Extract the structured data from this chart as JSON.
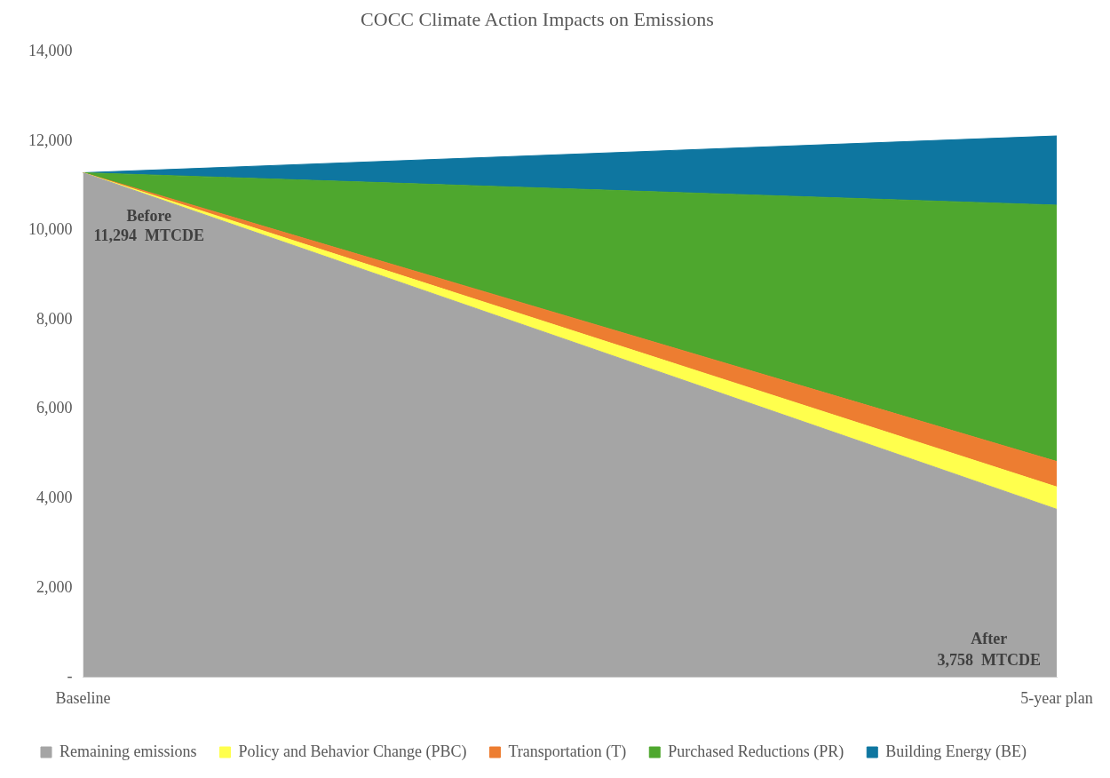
{
  "chart_data": {
    "type": "area",
    "title": "COCC Climate Action Impacts on Emissions",
    "categories": [
      "Baseline",
      "5-year plan"
    ],
    "stacked": true,
    "series": [
      {
        "name": "Remaining emissions",
        "color": "#a5a5a5",
        "values": [
          11294,
          3758
        ]
      },
      {
        "name": "Policy and Behavior Change (PBC)",
        "color": "#ffff4d",
        "values": [
          0,
          500
        ]
      },
      {
        "name": "Transportation (T)",
        "color": "#ed7d31",
        "values": [
          0,
          570
        ]
      },
      {
        "name": "Purchased Reductions (PR)",
        "color": "#4ea72e",
        "values": [
          0,
          5740
        ]
      },
      {
        "name": "Building Energy (BE)",
        "color": "#0e76a0",
        "values": [
          0,
          1550
        ]
      }
    ],
    "ylim": [
      0,
      14000
    ],
    "yticks": [
      {
        "value": 0,
        "label": "-"
      },
      {
        "value": 2000,
        "label": "2,000"
      },
      {
        "value": 4000,
        "label": "4,000"
      },
      {
        "value": 6000,
        "label": "6,000"
      },
      {
        "value": 8000,
        "label": "8,000"
      },
      {
        "value": 10000,
        "label": "10,000"
      },
      {
        "value": 12000,
        "label": "12,000"
      },
      {
        "value": 14000,
        "label": "14,000"
      }
    ],
    "grid": false,
    "legend": "bottom",
    "annotations": [
      {
        "text": "Before\n11,294  MTCDE",
        "x": "Baseline",
        "y": 11294
      },
      "After\n3,758  MTCDE"
    ]
  }
}
